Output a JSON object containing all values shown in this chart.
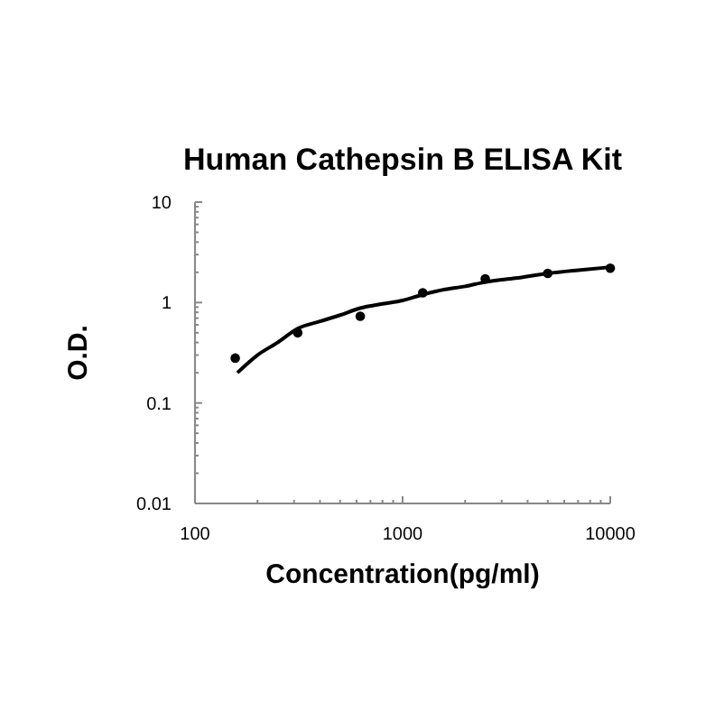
{
  "chart_data": {
    "type": "scatter",
    "title": "Human Cathepsin B ELISA Kit",
    "xlabel": "Concentration(pg/ml)",
    "ylabel": "O.D.",
    "log": "xy",
    "xlim": [
      100,
      10000
    ],
    "ylim": [
      0.01,
      10
    ],
    "xticks": [
      100,
      {
        "value": 200,
        "label": null
      },
      {
        "value": 300,
        "label": null
      },
      {
        "value": 400,
        "label": null
      },
      {
        "value": 500,
        "label": null
      },
      {
        "value": 600,
        "label": null
      },
      {
        "value": 700,
        "label": null
      },
      {
        "value": 800,
        "label": null
      },
      {
        "value": 900,
        "label": null
      },
      1000,
      {
        "value": 2000,
        "label": null
      },
      {
        "value": 3000,
        "label": null
      },
      {
        "value": 4000,
        "label": null
      },
      {
        "value": 5000,
        "label": null
      },
      {
        "value": 6000,
        "label": null
      },
      {
        "value": 7000,
        "label": null
      },
      {
        "value": 8000,
        "label": null
      },
      {
        "value": 9000,
        "label": null
      },
      10000
    ],
    "yticks": [
      0.01,
      {
        "value": 0.02,
        "label": null
      },
      {
        "value": 0.03,
        "label": null
      },
      {
        "value": 0.04,
        "label": null
      },
      {
        "value": 0.05,
        "label": null
      },
      {
        "value": 0.06,
        "label": null
      },
      {
        "value": 0.07,
        "label": null
      },
      {
        "value": 0.08,
        "label": null
      },
      {
        "value": 0.09,
        "label": null
      },
      0.1,
      {
        "value": 0.2,
        "label": null
      },
      {
        "value": 0.3,
        "label": null
      },
      {
        "value": 0.4,
        "label": null
      },
      {
        "value": 0.5,
        "label": null
      },
      {
        "value": 0.6,
        "label": null
      },
      {
        "value": 0.7,
        "label": null
      },
      {
        "value": 0.8,
        "label": null
      },
      {
        "value": 0.9,
        "label": null
      },
      1,
      {
        "value": 2,
        "label": null
      },
      {
        "value": 3,
        "label": null
      },
      {
        "value": 4,
        "label": null
      },
      {
        "value": 5,
        "label": null
      },
      {
        "value": 6,
        "label": null
      },
      {
        "value": 7,
        "label": null
      },
      {
        "value": 8,
        "label": null
      },
      {
        "value": 9,
        "label": null
      },
      10
    ],
    "grid": false,
    "series": [
      {
        "color": "#000000",
        "marker": "circle",
        "x": [
          156.25,
          312.5,
          625,
          1250,
          2500,
          5000,
          10000
        ],
        "values": [
          0.28,
          0.5,
          0.73,
          1.25,
          1.72,
          1.95,
          2.2
        ]
      },
      {
        "type": "line",
        "color": "#000000",
        "marker": "none",
        "line_style": "solid",
        "x": [
          160,
          200,
          250,
          312,
          400,
          500,
          625,
          800,
          1000,
          1250,
          1600,
          2000,
          2500,
          3500,
          5000,
          7000,
          10000
        ],
        "values": [
          0.2,
          0.3,
          0.4,
          0.55,
          0.65,
          0.75,
          0.88,
          0.97,
          1.05,
          1.2,
          1.35,
          1.45,
          1.6,
          1.75,
          1.95,
          2.1,
          2.25
        ]
      }
    ]
  }
}
